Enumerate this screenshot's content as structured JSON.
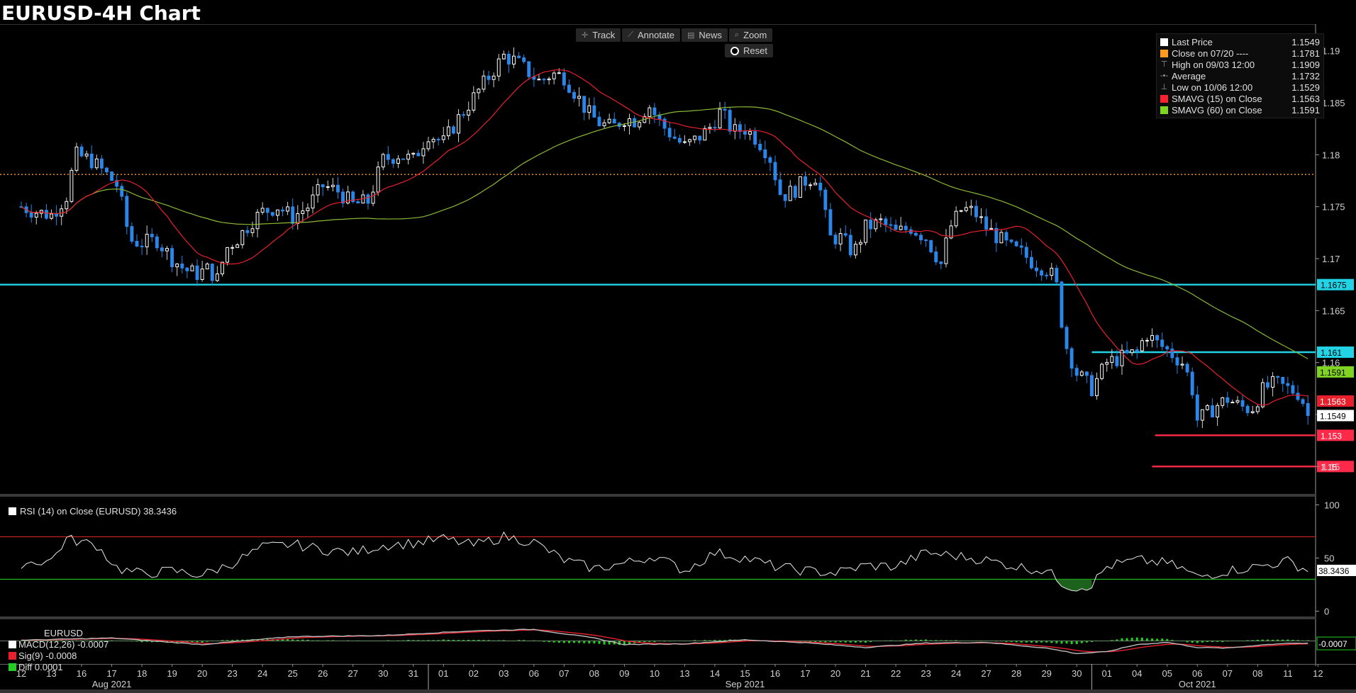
{
  "title": "EURUSD-4H Chart",
  "toolbar": {
    "track": "Track",
    "annotate": "Annotate",
    "news": "News",
    "zoom": "Zoom",
    "reset": "Reset"
  },
  "legend": [
    {
      "label": "Last Price",
      "value": "1.1549",
      "color": "#ffffff",
      "kind": "box"
    },
    {
      "label": "Close on 07/20 ----",
      "value": "1.1781",
      "color": "#ff9a1e",
      "kind": "box"
    },
    {
      "label": "High on 09/03 12:00",
      "value": "1.1909",
      "color": "#9a9a9a",
      "kind": "high"
    },
    {
      "label": "Average",
      "value": "1.1732",
      "color": "#9a9a9a",
      "kind": "avg"
    },
    {
      "label": "Low on 10/06 12:00",
      "value": "1.1529",
      "color": "#9a9a9a",
      "kind": "low"
    },
    {
      "label": "SMAVG (15)  on Close",
      "value": "1.1563",
      "color": "#ff2030",
      "kind": "box"
    },
    {
      "label": "SMAVG (60)  on Close",
      "value": "1.1591",
      "color": "#7fd321",
      "kind": "box"
    }
  ],
  "colors": {
    "up": "#ffffff",
    "down": "#2a86e8",
    "sma15": "#e8202c",
    "sma60": "#8ab834",
    "cyan": "#22d3e6",
    "support": "#ff2a4a",
    "orange": "#ff9a1e"
  },
  "chart_data": {
    "type": "candlestick",
    "symbol": "EURUSD",
    "timeframe": "4H",
    "ylim": [
      1.1475,
      1.1925
    ],
    "yticks": [
      1.15,
      1.155,
      1.16,
      1.165,
      1.17,
      1.175,
      1.18,
      1.185,
      1.19
    ],
    "ytick_labels": [
      "1.15",
      "",
      "1.16",
      "1.165",
      "1.17",
      "1.175",
      "1.18",
      "1.185",
      "1.19"
    ],
    "x_days": [
      "12",
      "13",
      "16",
      "17",
      "18",
      "19",
      "20",
      "23",
      "24",
      "25",
      "26",
      "27",
      "30",
      "31",
      "01",
      "02",
      "03",
      "06",
      "07",
      "08",
      "09",
      "10",
      "13",
      "14",
      "15",
      "16",
      "17",
      "20",
      "21",
      "22",
      "23",
      "24",
      "27",
      "28",
      "29",
      "30",
      "01",
      "04",
      "05",
      "06",
      "07",
      "08",
      "11",
      "12"
    ],
    "months": [
      {
        "label": "Aug 2021",
        "day_index": 3
      },
      {
        "label": "Sep 2021",
        "day_index": 24
      },
      {
        "label": "Oct 2021",
        "day_index": 39
      }
    ],
    "price_path": [
      [
        0,
        1.175
      ],
      [
        0.5,
        1.1745
      ],
      [
        1,
        1.1742
      ],
      [
        1.5,
        1.176
      ],
      [
        1.8,
        1.18
      ],
      [
        2.3,
        1.1795
      ],
      [
        2.8,
        1.1782
      ],
      [
        3.2,
        1.177
      ],
      [
        3.6,
        1.1718
      ],
      [
        4,
        1.1715
      ],
      [
        4.5,
        1.1718
      ],
      [
        5,
        1.17
      ],
      [
        5.4,
        1.169
      ],
      [
        5.8,
        1.1685
      ],
      [
        6.2,
        1.169
      ],
      [
        6.5,
        1.168
      ],
      [
        6.8,
        1.171
      ],
      [
        7.2,
        1.172
      ],
      [
        7.6,
        1.1735
      ],
      [
        8,
        1.1745
      ],
      [
        8.5,
        1.175
      ],
      [
        9,
        1.174
      ],
      [
        9.5,
        1.175
      ],
      [
        10,
        1.177
      ],
      [
        10.5,
        1.1765
      ],
      [
        11,
        1.1752
      ],
      [
        11.5,
        1.1755
      ],
      [
        12,
        1.1795
      ],
      [
        12.5,
        1.18
      ],
      [
        13,
        1.1795
      ],
      [
        13.5,
        1.182
      ],
      [
        14,
        1.1812
      ],
      [
        14.5,
        1.1835
      ],
      [
        15,
        1.1855
      ],
      [
        15.5,
        1.1875
      ],
      [
        16,
        1.1895
      ],
      [
        16.4,
        1.189
      ],
      [
        16.8,
        1.188
      ],
      [
        17.2,
        1.187
      ],
      [
        17.6,
        1.1878
      ],
      [
        18,
        1.1875
      ],
      [
        18.4,
        1.1858
      ],
      [
        18.8,
        1.184
      ],
      [
        19.2,
        1.183
      ],
      [
        19.6,
        1.1826
      ],
      [
        20,
        1.1835
      ],
      [
        20.4,
        1.1833
      ],
      [
        20.8,
        1.1848
      ],
      [
        21.2,
        1.183
      ],
      [
        21.6,
        1.1818
      ],
      [
        22,
        1.1808
      ],
      [
        22.4,
        1.1815
      ],
      [
        22.8,
        1.1825
      ],
      [
        23.2,
        1.1842
      ],
      [
        23.6,
        1.1822
      ],
      [
        24,
        1.1825
      ],
      [
        24.4,
        1.1815
      ],
      [
        24.8,
        1.18
      ],
      [
        25.2,
        1.176
      ],
      [
        25.6,
        1.1765
      ],
      [
        26,
        1.1775
      ],
      [
        26.4,
        1.178
      ],
      [
        26.8,
        1.172
      ],
      [
        27.2,
        1.172
      ],
      [
        27.6,
        1.1705
      ],
      [
        28,
        1.173
      ],
      [
        28.5,
        1.1735
      ],
      [
        29,
        1.1725
      ],
      [
        29.5,
        1.173
      ],
      [
        30,
        1.172
      ],
      [
        30.5,
        1.1695
      ],
      [
        30.8,
        1.173
      ],
      [
        31.2,
        1.1748
      ],
      [
        31.6,
        1.1745
      ],
      [
        32,
        1.173
      ],
      [
        32.4,
        1.172
      ],
      [
        32.8,
        1.171
      ],
      [
        33.2,
        1.1705
      ],
      [
        33.6,
        1.1695
      ],
      [
        34,
        1.169
      ],
      [
        34.3,
        1.168
      ],
      [
        34.6,
        1.162
      ],
      [
        35,
        1.159
      ],
      [
        35.5,
        1.1575
      ],
      [
        36,
        1.16
      ],
      [
        36.5,
        1.1605
      ],
      [
        37,
        1.161
      ],
      [
        37.3,
        1.1628
      ],
      [
        37.6,
        1.162
      ],
      [
        38,
        1.1612
      ],
      [
        38.5,
        1.16
      ],
      [
        38.8,
        1.158
      ],
      [
        39,
        1.1545
      ],
      [
        39.3,
        1.155
      ],
      [
        39.6,
        1.1558
      ],
      [
        40,
        1.1565
      ],
      [
        40.4,
        1.1558
      ],
      [
        40.8,
        1.1555
      ],
      [
        41.2,
        1.1575
      ],
      [
        41.6,
        1.158
      ],
      [
        42,
        1.1575
      ],
      [
        42.4,
        1.157
      ],
      [
        42.7,
        1.1549
      ]
    ],
    "series": [
      {
        "name": "SMAVG (15) on Close",
        "last": 1.1563
      },
      {
        "name": "SMAVG (60) on Close",
        "last": 1.1591
      }
    ],
    "levels": [
      {
        "value": 1.1675,
        "label": "1.1675",
        "color": "#22d3e6",
        "from": 0
      },
      {
        "value": 1.161,
        "label": "1.161",
        "color": "#22d3e6",
        "from": 35.5
      },
      {
        "value": 1.153,
        "label": "1.153",
        "color": "#ff2a4a",
        "from": 37.6
      },
      {
        "value": 1.15,
        "label": "1.15",
        "color": "#ff2a4a",
        "from": 37.5
      },
      {
        "value": 1.1781,
        "label": "",
        "color": "#ff9a1e",
        "from": 0,
        "dotted": true
      }
    ],
    "axis_tags": [
      {
        "value": 1.1591,
        "label": "1.1591",
        "bg": "#7fd321",
        "fg": "#000"
      },
      {
        "value": 1.1563,
        "label": "1.1563",
        "bg": "#e8202c",
        "fg": "#fff"
      },
      {
        "value": 1.1549,
        "label": "1.1549",
        "bg": "#ffffff",
        "fg": "#000"
      }
    ],
    "rsi": {
      "label": "RSI (14)  on Close (EURUSD) 38.3436",
      "value": 38.3436,
      "value_label": "38.3436",
      "ylim": [
        -5,
        105
      ],
      "yticks": [
        "100",
        "50",
        "0"
      ],
      "upper": 70,
      "lower": 30,
      "path": [
        [
          0,
          45
        ],
        [
          1,
          48
        ],
        [
          1.5,
          68
        ],
        [
          2.5,
          62
        ],
        [
          3.2,
          40
        ],
        [
          4,
          35
        ],
        [
          5,
          38
        ],
        [
          6,
          34
        ],
        [
          7,
          45
        ],
        [
          8,
          60
        ],
        [
          9,
          63
        ],
        [
          10,
          58
        ],
        [
          11,
          55
        ],
        [
          12,
          62
        ],
        [
          13,
          64
        ],
        [
          14,
          68
        ],
        [
          15,
          62
        ],
        [
          16,
          70
        ],
        [
          17,
          65
        ],
        [
          18,
          48
        ],
        [
          19,
          40
        ],
        [
          20,
          45
        ],
        [
          21,
          52
        ],
        [
          22,
          38
        ],
        [
          23,
          55
        ],
        [
          24,
          50
        ],
        [
          25,
          42
        ],
        [
          26,
          38
        ],
        [
          27,
          36
        ],
        [
          28,
          43
        ],
        [
          29,
          42
        ],
        [
          30,
          55
        ],
        [
          31,
          52
        ],
        [
          32,
          48
        ],
        [
          33,
          42
        ],
        [
          34,
          38
        ],
        [
          34.6,
          25
        ],
        [
          35,
          22
        ],
        [
          35.5,
          25
        ],
        [
          36,
          42
        ],
        [
          37,
          48
        ],
        [
          38,
          45
        ],
        [
          38.5,
          40
        ],
        [
          39,
          32
        ],
        [
          40,
          38
        ],
        [
          41,
          42
        ],
        [
          42,
          47
        ],
        [
          42.7,
          38
        ]
      ]
    },
    "macd": {
      "symbol_label": "EURUSD",
      "entries": [
        {
          "label": "MACD(12,26)",
          "value": "-0.0007",
          "color": "#ffffff"
        },
        {
          "label": "Sig(9)",
          "value": "-0.0008",
          "color": "#e8202c"
        },
        {
          "label": "Diff",
          "value": "0.0001",
          "color": "#22cc22"
        }
      ],
      "value_tag": "-0.0007",
      "ylim": [
        -0.006,
        0.006
      ],
      "path": [
        [
          0,
          0.0002
        ],
        [
          3,
          0.0008
        ],
        [
          6,
          -0.001
        ],
        [
          9,
          0.0012
        ],
        [
          12,
          0.0015
        ],
        [
          15,
          0.0028
        ],
        [
          17,
          0.0032
        ],
        [
          19,
          0.0008
        ],
        [
          20,
          -0.001
        ],
        [
          22,
          -0.0008
        ],
        [
          24,
          0.0003
        ],
        [
          26,
          -0.0005
        ],
        [
          28,
          -0.0018
        ],
        [
          30,
          -0.0006
        ],
        [
          32,
          -0.0004
        ],
        [
          34,
          -0.002
        ],
        [
          35,
          -0.0035
        ],
        [
          36,
          -0.003
        ],
        [
          37,
          -0.001
        ],
        [
          38,
          -0.0004
        ],
        [
          39,
          -0.0018
        ],
        [
          40,
          -0.002
        ],
        [
          41,
          -0.0012
        ],
        [
          42,
          -0.0006
        ],
        [
          42.7,
          -0.0007
        ]
      ]
    }
  }
}
